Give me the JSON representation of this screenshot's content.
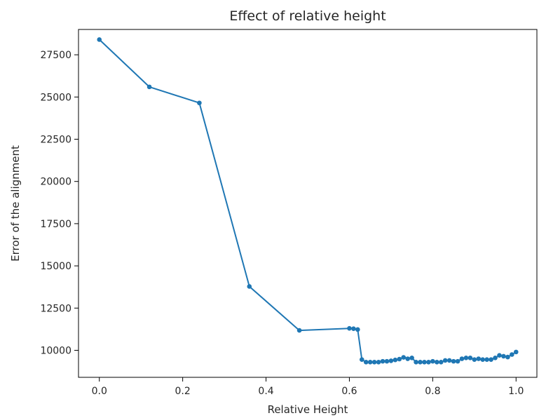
{
  "chart_data": {
    "type": "line",
    "title": "Effect of relative height",
    "xlabel": "Relative Height",
    "ylabel": "Error of the alignment",
    "xlim": [
      -0.05,
      1.05
    ],
    "ylim": [
      8400,
      29000
    ],
    "x_ticks": [
      0.0,
      0.2,
      0.4,
      0.6,
      0.8,
      1.0
    ],
    "x_tick_labels": [
      "0.0",
      "0.2",
      "0.4",
      "0.6",
      "0.8",
      "1.0"
    ],
    "y_ticks": [
      10000,
      12500,
      15000,
      17500,
      20000,
      22500,
      25000,
      27500
    ],
    "y_tick_labels": [
      "10000",
      "12500",
      "15000",
      "17500",
      "20000",
      "22500",
      "25000",
      "27500"
    ],
    "grid": false,
    "marker": "point",
    "series": [
      {
        "color": "#1f77b4",
        "x": [
          0.0,
          0.12,
          0.24,
          0.36,
          0.48,
          0.6,
          0.61,
          0.62,
          0.63,
          0.64,
          0.65,
          0.66,
          0.67,
          0.68,
          0.69,
          0.7,
          0.71,
          0.72,
          0.73,
          0.74,
          0.75,
          0.76,
          0.77,
          0.78,
          0.79,
          0.8,
          0.81,
          0.82,
          0.83,
          0.84,
          0.85,
          0.86,
          0.87,
          0.88,
          0.89,
          0.9,
          0.91,
          0.92,
          0.93,
          0.94,
          0.95,
          0.96,
          0.97,
          0.98,
          0.99,
          1.0
        ],
        "y": [
          28400,
          25600,
          24650,
          13780,
          11180,
          11300,
          11280,
          11230,
          9450,
          9300,
          9300,
          9300,
          9300,
          9350,
          9350,
          9380,
          9430,
          9480,
          9580,
          9500,
          9550,
          9300,
          9300,
          9300,
          9300,
          9350,
          9300,
          9300,
          9400,
          9400,
          9350,
          9350,
          9500,
          9550,
          9550,
          9450,
          9500,
          9450,
          9450,
          9450,
          9550,
          9700,
          9650,
          9600,
          9750,
          9900
        ]
      }
    ]
  }
}
